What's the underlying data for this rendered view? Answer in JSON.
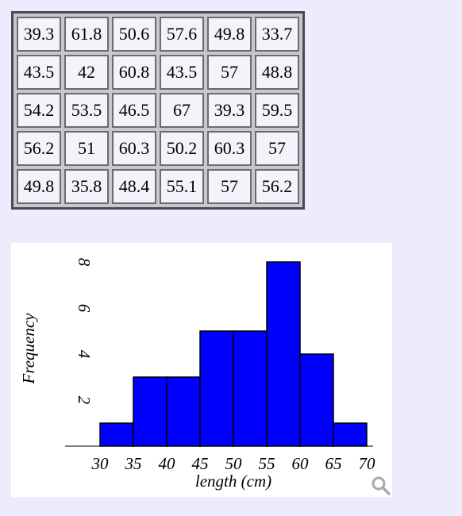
{
  "table": {
    "rows": [
      [
        "39.3",
        "61.8",
        "50.6",
        "57.6",
        "49.8",
        "33.7"
      ],
      [
        "43.5",
        "42",
        "60.8",
        "43.5",
        "57",
        "48.8"
      ],
      [
        "54.2",
        "53.5",
        "46.5",
        "67",
        "39.3",
        "59.5"
      ],
      [
        "56.2",
        "51",
        "60.3",
        "50.2",
        "60.3",
        "57"
      ],
      [
        "49.8",
        "35.8",
        "48.4",
        "55.1",
        "57",
        "56.2"
      ]
    ]
  },
  "chart_data": {
    "type": "bar",
    "bins": [
      [
        30,
        35
      ],
      [
        35,
        40
      ],
      [
        40,
        45
      ],
      [
        45,
        50
      ],
      [
        50,
        55
      ],
      [
        55,
        60
      ],
      [
        60,
        65
      ],
      [
        65,
        70
      ]
    ],
    "values": [
      1,
      3,
      3,
      5,
      5,
      8,
      4,
      1
    ],
    "xticks": [
      "30",
      "35",
      "40",
      "45",
      "50",
      "55",
      "60",
      "65",
      "70"
    ],
    "yticks": [
      "2",
      "4",
      "6",
      "8"
    ],
    "xlabel": "length (cm)",
    "ylabel": "Frequency",
    "xlim": [
      30,
      70
    ],
    "ylim": [
      0,
      8
    ],
    "bar_color": "#0000ff",
    "grid": false
  },
  "icons": {
    "zoom": "magnifier-icon"
  }
}
